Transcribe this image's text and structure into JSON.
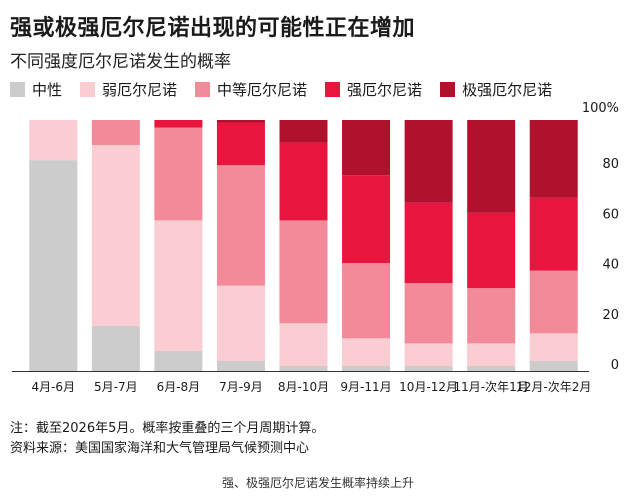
{
  "chart_data": {
    "type": "bar",
    "stacked": true,
    "title": "强或极强厄尔尼诺出现的可能性正在增加",
    "subtitle": "不同强度厄尔尼诺发生的概率",
    "categories": [
      "4月-6月",
      "5月-7月",
      "6月-8月",
      "7月-9月",
      "8月-10月",
      "9月-11月",
      "10月-12月",
      "11月-次年1月",
      "12月-次年2月"
    ],
    "series": [
      {
        "name": "中性",
        "color": "#cccccc",
        "values": [
          84,
          18,
          8,
          4,
          2,
          2,
          2,
          2,
          4
        ]
      },
      {
        "name": "弱厄尔尼诺",
        "color": "#f9cdd2",
        "values": [
          16,
          72,
          52,
          30,
          17,
          11,
          9,
          9,
          11
        ]
      },
      {
        "name": "中等厄尔尼诺",
        "color": "#f28a9a",
        "values": [
          0,
          10,
          37,
          48,
          41,
          30,
          24,
          22,
          25
        ]
      },
      {
        "name": "强厄尔尼诺",
        "color": "#e8163f",
        "values": [
          0,
          0,
          3,
          17,
          31,
          35,
          32,
          30,
          29
        ]
      },
      {
        "name": "极强厄尔尼诺",
        "color": "#b0122e",
        "values": [
          0,
          0,
          0,
          1,
          9,
          22,
          33,
          37,
          31
        ]
      }
    ],
    "y_ticks": [
      "0",
      "20",
      "40",
      "60",
      "80",
      "100%"
    ],
    "ylim": [
      0,
      100
    ],
    "grid": false,
    "legend_position": "top"
  },
  "notes": {
    "line1": "注：截至2026年5月。概率按重叠的三个月周期计算。",
    "line2": "资料来源：美国国家海洋和大气管理局气候预测中心"
  },
  "caption": "强、极强厄尔尼诺发生概率持续上升"
}
